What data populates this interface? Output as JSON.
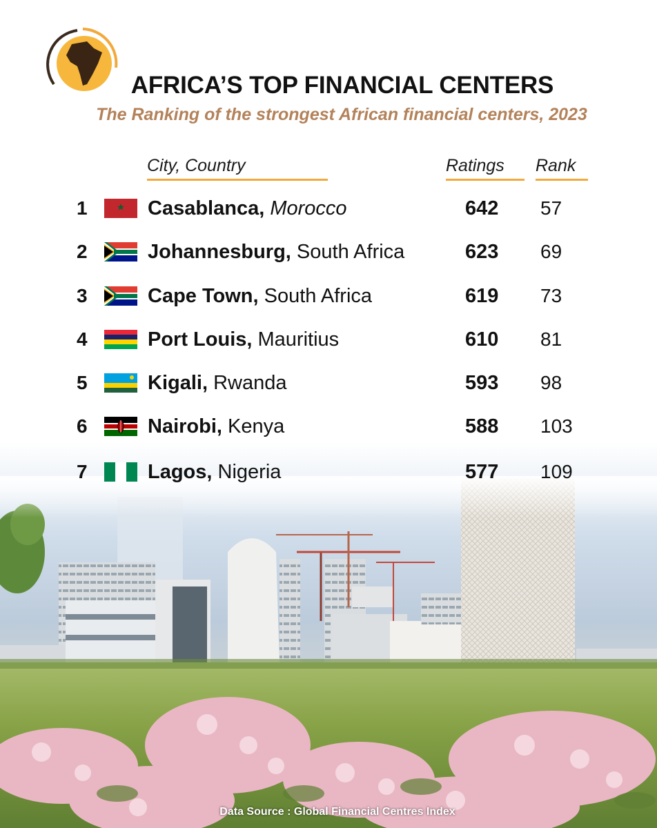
{
  "header": {
    "title": "AFRICA’S TOP FINANCIAL CENTERS",
    "subtitle": "The Ranking of the strongest African financial centers, 2023"
  },
  "columns": {
    "city": "City, Country",
    "ratings": "Ratings",
    "rank": "Rank"
  },
  "rows": [
    {
      "num": "1",
      "city": "Casablanca,",
      "country": "Morocco",
      "rating": "642",
      "rank": "57",
      "flag": "morocco-flag"
    },
    {
      "num": "2",
      "city": "Johannesburg,",
      "country": "South Africa",
      "rating": "623",
      "rank": "69",
      "flag": "south-africa-flag"
    },
    {
      "num": "3",
      "city": "Cape Town,",
      "country": "South Africa",
      "rating": "619",
      "rank": "73",
      "flag": "south-africa-flag"
    },
    {
      "num": "4",
      "city": "Port Louis,",
      "country": "Mauritius",
      "rating": "610",
      "rank": "81",
      "flag": "mauritius-flag"
    },
    {
      "num": "5",
      "city": "Kigali,",
      "country": "Rwanda",
      "rating": "593",
      "rank": "98",
      "flag": "rwanda-flag"
    },
    {
      "num": "6",
      "city": "Nairobi,",
      "country": "Kenya",
      "rating": "588",
      "rank": "103",
      "flag": "kenya-flag"
    },
    {
      "num": "7",
      "city": "Lagos,",
      "country": "Nigeria",
      "rating": "577",
      "rank": "109",
      "flag": "nigeria-flag"
    }
  ],
  "footer": {
    "source": "Data Source : Global Financial Centres Index"
  },
  "colors": {
    "accent": "#f2a93b",
    "subtitle": "#b3825a",
    "text": "#111111"
  }
}
